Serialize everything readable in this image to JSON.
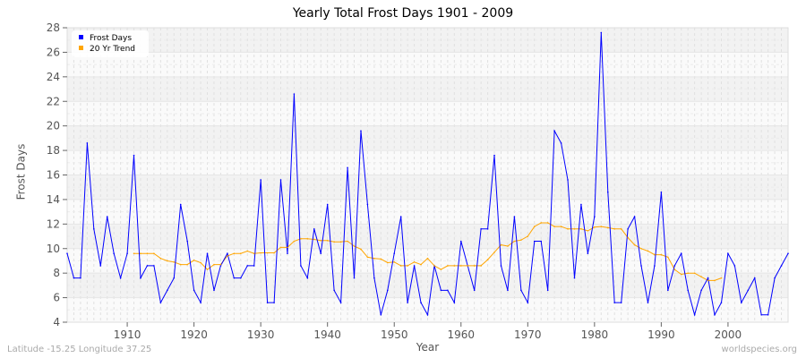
{
  "chart_data": {
    "type": "line",
    "title": "Yearly Total Frost Days 1901 - 2009",
    "xlabel": "Year",
    "ylabel": "Frost Days",
    "xlim": [
      1901,
      2009
    ],
    "ylim": [
      4,
      28
    ],
    "yticks": [
      4,
      6,
      8,
      10,
      12,
      14,
      16,
      18,
      20,
      22,
      24,
      26,
      28
    ],
    "xticks": [
      1910,
      1920,
      1930,
      1940,
      1950,
      1960,
      1970,
      1980,
      1990,
      2000
    ],
    "grid": true,
    "legend_position": "top-left",
    "series": [
      {
        "name": "Frost Days",
        "color": "#0000ff",
        "start_year": 1901,
        "values": [
          9.6,
          7.6,
          7.6,
          18.6,
          11.6,
          8.6,
          12.6,
          9.6,
          7.6,
          9.6,
          17.6,
          7.6,
          8.6,
          8.6,
          5.6,
          6.6,
          7.6,
          13.6,
          10.6,
          6.6,
          5.6,
          9.6,
          6.6,
          8.6,
          9.6,
          7.6,
          7.6,
          8.6,
          8.6,
          15.6,
          5.6,
          5.6,
          15.6,
          9.6,
          22.6,
          8.6,
          7.6,
          11.6,
          9.6,
          13.6,
          6.6,
          5.6,
          16.6,
          7.6,
          19.6,
          13.6,
          7.6,
          4.6,
          6.6,
          9.6,
          12.6,
          5.6,
          8.6,
          5.6,
          4.6,
          8.6,
          6.6,
          6.6,
          5.6,
          10.6,
          8.6,
          6.6,
          11.6,
          11.6,
          17.6,
          8.6,
          6.6,
          12.6,
          6.6,
          5.6,
          10.6,
          10.6,
          6.6,
          19.6,
          18.6,
          15.6,
          7.6,
          13.6,
          9.6,
          12.6,
          27.6,
          14.6,
          5.6,
          5.6,
          11.6,
          12.6,
          8.6,
          5.6,
          8.6,
          14.6,
          6.6,
          8.6,
          9.6,
          6.6,
          4.6,
          6.6,
          7.6,
          4.6,
          5.6,
          9.6,
          8.6,
          5.6,
          6.6,
          7.6,
          4.6,
          4.6,
          7.6,
          8.6,
          9.6
        ]
      },
      {
        "name": "20 Yr Trend",
        "color": "#ffa500",
        "start_year": 1911,
        "values": [
          9.6,
          9.6,
          9.6,
          9.6,
          9.2,
          9.0,
          8.9,
          8.7,
          8.7,
          9.05,
          8.85,
          8.3,
          8.7,
          8.7,
          9.4,
          9.6,
          9.6,
          9.8,
          9.6,
          9.65,
          9.65,
          9.65,
          10.1,
          10.1,
          10.6,
          10.8,
          10.8,
          10.75,
          10.65,
          10.65,
          10.55,
          10.55,
          10.6,
          10.2,
          9.95,
          9.3,
          9.2,
          9.15,
          8.85,
          8.9,
          8.6,
          8.6,
          8.9,
          8.7,
          9.2,
          8.6,
          8.3,
          8.6,
          8.6,
          8.6,
          8.6,
          8.6,
          8.6,
          9.1,
          9.7,
          10.3,
          10.2,
          10.6,
          10.7,
          11.0,
          11.8,
          12.1,
          12.1,
          11.8,
          11.8,
          11.6,
          11.6,
          11.6,
          11.45,
          11.75,
          11.8,
          11.7,
          11.6,
          11.6,
          10.9,
          10.3,
          10.0,
          9.8,
          9.5,
          9.5,
          9.3,
          8.3,
          7.9,
          8.0,
          8.0,
          7.7,
          7.4,
          7.4,
          7.6
        ]
      }
    ]
  },
  "footer": {
    "location": "Latitude -15.25 Longitude 37.25",
    "source": "worldspecies.org"
  }
}
